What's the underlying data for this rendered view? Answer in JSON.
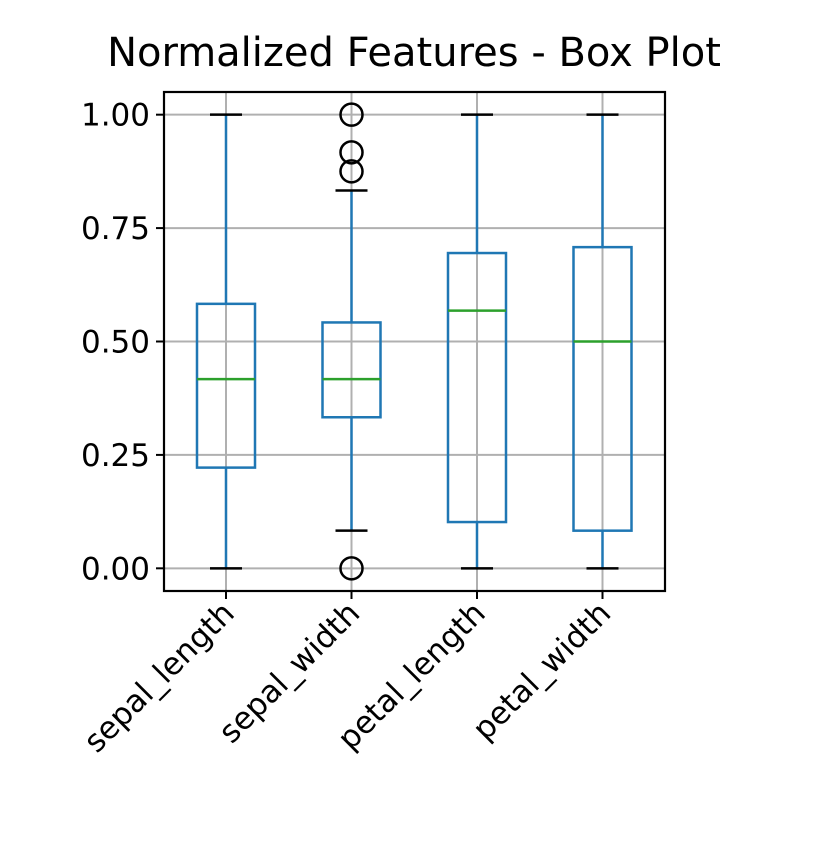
{
  "chart_data": {
    "type": "box",
    "title": "Normalized Features - Box Plot",
    "xlabel": "",
    "ylabel": "",
    "ylim": [
      -0.05,
      1.05
    ],
    "yticks": [
      0.0,
      0.25,
      0.5,
      0.75,
      1.0
    ],
    "ytick_labels": [
      "0.00",
      "0.25",
      "0.50",
      "0.75",
      "1.00"
    ],
    "grid": true,
    "categories": [
      "sepal_length",
      "sepal_width",
      "petal_length",
      "petal_width"
    ],
    "boxes": [
      {
        "name": "sepal_length",
        "whisker_low": 0.0,
        "q1": 0.222,
        "median": 0.417,
        "q3": 0.583,
        "whisker_high": 1.0,
        "outliers": []
      },
      {
        "name": "sepal_width",
        "whisker_low": 0.083,
        "q1": 0.333,
        "median": 0.417,
        "q3": 0.542,
        "whisker_high": 0.833,
        "outliers": [
          0.0,
          0.875,
          0.917,
          1.0
        ]
      },
      {
        "name": "petal_length",
        "whisker_low": 0.0,
        "q1": 0.102,
        "median": 0.568,
        "q3": 0.695,
        "whisker_high": 1.0,
        "outliers": []
      },
      {
        "name": "petal_width",
        "whisker_low": 0.0,
        "q1": 0.083,
        "median": 0.5,
        "q3": 0.708,
        "whisker_high": 1.0,
        "outliers": []
      }
    ],
    "colors": {
      "box": "#1f77b4",
      "median": "#2ca02c",
      "cap": "#000000",
      "flier": "#000000",
      "grid": "#b0b0b0",
      "axis": "#000000"
    }
  }
}
